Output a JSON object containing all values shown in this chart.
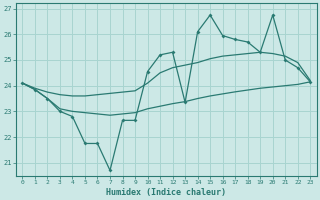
{
  "xlabel": "Humidex (Indice chaleur)",
  "bg_color": "#cce8e6",
  "grid_color": "#a8d4d0",
  "line_color": "#2a7a72",
  "xlim": [
    -0.5,
    23.5
  ],
  "ylim": [
    20.5,
    27.2
  ],
  "xticks": [
    0,
    1,
    2,
    3,
    4,
    5,
    6,
    7,
    8,
    9,
    10,
    11,
    12,
    13,
    14,
    15,
    16,
    17,
    18,
    19,
    20,
    21,
    22,
    23
  ],
  "yticks": [
    21,
    22,
    23,
    24,
    25,
    26,
    27
  ],
  "line_main_x": [
    0,
    1,
    2,
    3,
    4,
    5,
    6,
    7,
    8,
    9,
    10,
    11,
    12,
    13,
    14,
    15,
    16,
    17,
    18,
    19,
    20,
    21,
    22,
    23
  ],
  "line_main_y": [
    24.1,
    23.85,
    23.5,
    23.0,
    22.8,
    21.75,
    21.75,
    20.7,
    22.65,
    22.65,
    24.55,
    25.2,
    25.3,
    23.35,
    26.1,
    26.75,
    25.95,
    25.8,
    25.7,
    25.3,
    26.75,
    25.0,
    24.7,
    24.15
  ],
  "line_upper_x": [
    0,
    1,
    2,
    3,
    4,
    5,
    6,
    7,
    8,
    9,
    10,
    11,
    12,
    13,
    14,
    15,
    16,
    17,
    18,
    19,
    20,
    21,
    22,
    23
  ],
  "line_upper_y": [
    24.1,
    23.9,
    23.75,
    23.65,
    23.6,
    23.6,
    23.65,
    23.7,
    23.75,
    23.8,
    24.1,
    24.5,
    24.7,
    24.8,
    24.9,
    25.05,
    25.15,
    25.2,
    25.25,
    25.3,
    25.25,
    25.15,
    24.9,
    24.2
  ],
  "line_lower_x": [
    0,
    1,
    2,
    3,
    4,
    5,
    6,
    7,
    8,
    9,
    10,
    11,
    12,
    13,
    14,
    15,
    16,
    17,
    18,
    19,
    20,
    21,
    22,
    23
  ],
  "line_lower_y": [
    24.1,
    23.85,
    23.5,
    23.1,
    23.0,
    22.95,
    22.9,
    22.85,
    22.9,
    22.95,
    23.1,
    23.2,
    23.3,
    23.38,
    23.5,
    23.6,
    23.68,
    23.76,
    23.83,
    23.9,
    23.95,
    24.0,
    24.05,
    24.15
  ]
}
